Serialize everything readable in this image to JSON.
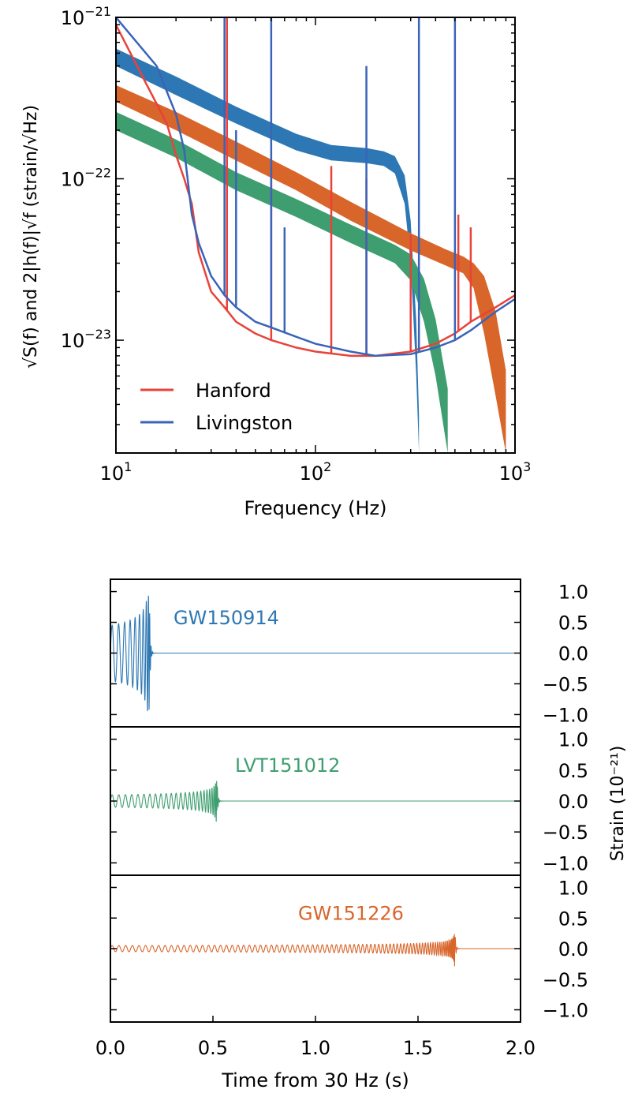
{
  "chart_data": [
    {
      "type": "line",
      "xlabel": "Frequency (Hz)",
      "ylabel": "√S(f) and 2|h(f)|√f (strain/√Hz)",
      "xscale": "log",
      "yscale": "log",
      "xlim": [
        10,
        1000
      ],
      "ylim": [
        2e-24,
        1e-21
      ],
      "xticks": [
        {
          "value": 10,
          "base": "10",
          "exp": "1"
        },
        {
          "value": 100,
          "base": "10",
          "exp": "2"
        },
        {
          "value": 1000,
          "base": "10",
          "exp": "3"
        }
      ],
      "yticks": [
        {
          "value": 1e-23,
          "base": "10",
          "exp": "−23"
        },
        {
          "value": 1e-22,
          "base": "10",
          "exp": "−22"
        },
        {
          "value": 1e-21,
          "base": "10",
          "exp": "−21"
        }
      ],
      "legend_position": "lower-left",
      "grid": false,
      "series": [
        {
          "name": "Hanford",
          "color": "#e8423a",
          "points": [
            [
              10,
              9e-22
            ],
            [
              14,
              4e-22
            ],
            [
              18,
              2.2e-22
            ],
            [
              20,
              1.4e-22
            ],
            [
              22,
              1e-22
            ],
            [
              24,
              7e-23
            ],
            [
              26,
              3.5e-23
            ],
            [
              30,
              2e-23
            ],
            [
              35,
              1.6e-23
            ],
            [
              40,
              1.3e-23
            ],
            [
              50,
              1.1e-23
            ],
            [
              60,
              1e-23
            ],
            [
              80,
              9e-24
            ],
            [
              100,
              8.5e-24
            ],
            [
              150,
              8e-24
            ],
            [
              200,
              8e-24
            ],
            [
              300,
              8.5e-24
            ],
            [
              400,
              9.5e-24
            ],
            [
              500,
              1.1e-23
            ],
            [
              600,
              1.3e-23
            ],
            [
              800,
              1.6e-23
            ],
            [
              1000,
              1.9e-23
            ]
          ],
          "lines": [
            [
              36,
              1e-21
            ],
            [
              60,
              1.2e-22
            ],
            [
              120,
              1.2e-22
            ],
            [
              180,
              1e-22
            ],
            [
              300,
              4.5e-23
            ],
            [
              520,
              6e-23
            ],
            [
              600,
              5e-23
            ]
          ]
        },
        {
          "name": "Livingston",
          "color": "#3a64b8",
          "points": [
            [
              10,
              1e-21
            ],
            [
              16,
              5e-22
            ],
            [
              20,
              2.5e-22
            ],
            [
              22,
              1.5e-22
            ],
            [
              24,
              6e-23
            ],
            [
              26,
              4e-23
            ],
            [
              30,
              2.5e-23
            ],
            [
              35,
              1.9e-23
            ],
            [
              40,
              1.6e-23
            ],
            [
              50,
              1.3e-23
            ],
            [
              60,
              1.2e-23
            ],
            [
              80,
              1.05e-23
            ],
            [
              100,
              9.5e-24
            ],
            [
              150,
              8.5e-24
            ],
            [
              200,
              8e-24
            ],
            [
              300,
              8.2e-24
            ],
            [
              400,
              9e-24
            ],
            [
              500,
              1e-23
            ],
            [
              600,
              1.15e-23
            ],
            [
              800,
              1.5e-23
            ],
            [
              1000,
              1.8e-23
            ]
          ],
          "lines": [
            [
              35,
              1e-21
            ],
            [
              40,
              2e-22
            ],
            [
              60,
              1e-21
            ],
            [
              70,
              5e-23
            ],
            [
              180,
              5e-22
            ],
            [
              330,
              1e-21
            ],
            [
              500,
              1e-21
            ]
          ]
        },
        {
          "name": "GW150914",
          "color": "#2d78b4",
          "band": [
            [
              10,
              5e-22,
              6.4e-22
            ],
            [
              20,
              3.3e-22,
              4.3e-22
            ],
            [
              40,
              2.2e-22,
              2.8e-22
            ],
            [
              80,
              1.5e-22,
              1.9e-22
            ],
            [
              120,
              1.3e-22,
              1.62e-22
            ],
            [
              180,
              1.25e-22,
              1.55e-22
            ],
            [
              220,
              1.2e-22,
              1.48e-22
            ],
            [
              250,
              1.08e-22,
              1.38e-22
            ],
            [
              280,
              7e-23,
              1.05e-22
            ],
            [
              300,
              3e-23,
              5.5e-23
            ],
            [
              320,
              6e-24,
              1.3e-23
            ],
            [
              330,
              2e-24,
              3.5e-24
            ]
          ]
        },
        {
          "name": "LVT151012",
          "color": "#3f9e70",
          "band": [
            [
              10,
              2e-22,
              2.6e-22
            ],
            [
              20,
              1.35e-22,
              1.75e-22
            ],
            [
              40,
              8.5e-23,
              1.1e-22
            ],
            [
              80,
              5.8e-23,
              7.5e-23
            ],
            [
              150,
              4e-23,
              5.2e-23
            ],
            [
              250,
              3e-23,
              3.9e-23
            ],
            [
              300,
              2.35e-23,
              3.4e-23
            ],
            [
              350,
              1.3e-23,
              2.4e-23
            ],
            [
              400,
              6e-24,
              1.35e-23
            ],
            [
              460,
              2e-24,
              5e-24
            ]
          ]
        },
        {
          "name": "GW151226",
          "color": "#d8652a",
          "band": [
            [
              10,
              3e-22,
              3.8e-22
            ],
            [
              20,
              2e-22,
              2.6e-22
            ],
            [
              40,
              1.3e-22,
              1.7e-22
            ],
            [
              80,
              8.5e-23,
              1.1e-22
            ],
            [
              150,
              5.5e-23,
              7.2e-23
            ],
            [
              300,
              3.6e-23,
              4.6e-23
            ],
            [
              450,
              2.9e-23,
              3.65e-23
            ],
            [
              550,
              2.6e-23,
              3.3e-23
            ],
            [
              620,
              2.1e-23,
              3e-23
            ],
            [
              700,
              1.1e-23,
              2.5e-23
            ],
            [
              800,
              4.5e-24,
              1.5e-23
            ],
            [
              900,
              2e-24,
              6.5e-24
            ]
          ]
        }
      ]
    },
    {
      "type": "line",
      "xlabel": "Time from 30 Hz (s)",
      "ylabel": "Strain (10⁻²¹)",
      "xlim": [
        0.0,
        2.0
      ],
      "xticks": [
        "0.0",
        "0.5",
        "1.0",
        "1.5",
        "2.0"
      ],
      "ylim": [
        -1.2,
        1.2
      ],
      "yticks": [
        "1.0",
        "0.5",
        "0.0",
        "−0.5",
        "−1.0"
      ],
      "panels": [
        {
          "name": "GW150914",
          "color": "#2d78b4",
          "merger_time": 0.19,
          "start_amplitude": 0.45,
          "peak_amplitude": 0.95,
          "start_freq_hz": 30,
          "end_freq_hz": 150
        },
        {
          "name": "LVT151012",
          "color": "#3f9e70",
          "merger_time": 0.52,
          "start_amplitude": 0.1,
          "peak_amplitude": 0.35,
          "start_freq_hz": 30,
          "end_freq_hz": 140
        },
        {
          "name": "GW151226",
          "color": "#d8652a",
          "merger_time": 1.68,
          "start_amplitude": 0.05,
          "peak_amplitude": 0.3,
          "start_freq_hz": 30,
          "end_freq_hz": 120
        }
      ]
    }
  ]
}
